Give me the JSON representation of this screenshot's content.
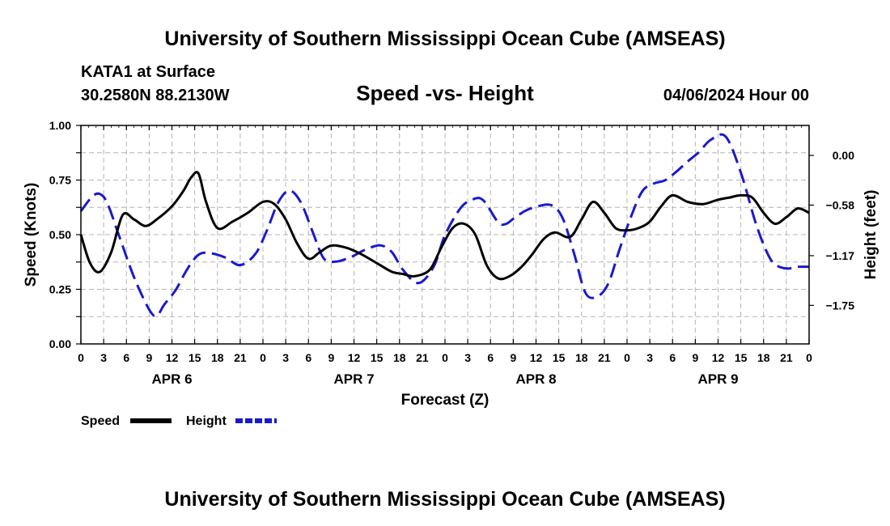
{
  "header": {
    "title_top": "University of Southern Mississippi Ocean Cube (AMSEAS)",
    "station": "KATA1 at Surface",
    "coords": "30.2580N  88.2130W",
    "chart_title": "Speed -vs- Height",
    "date": "04/06/2024 Hour 00",
    "title_bottom": "University of Southern Mississippi Ocean Cube (AMSEAS)"
  },
  "legend": {
    "speed": "Speed",
    "height": "Height"
  },
  "colors": {
    "speed": "#000000",
    "height": "#1a1acc",
    "grid": "#b4b4b4"
  },
  "chart_data": {
    "type": "line",
    "xlabel": "Forecast (Z)",
    "ylabel_left": "Speed (Knots)",
    "ylabel_right": "Height (feet)",
    "x_range_hours": [
      0,
      96
    ],
    "x_tick_labels": [
      "0",
      "3",
      "6",
      "9",
      "12",
      "15",
      "18",
      "21",
      "0",
      "3",
      "6",
      "9",
      "12",
      "15",
      "18",
      "21",
      "0",
      "3",
      "6",
      "9",
      "12",
      "15",
      "18",
      "21",
      "0",
      "3",
      "6",
      "9",
      "12",
      "15",
      "18",
      "21",
      "0"
    ],
    "day_labels": [
      "APR 6",
      "APR 7",
      "APR 8",
      "APR 9"
    ],
    "y_left": {
      "range": [
        0,
        1
      ],
      "ticks": [
        "0.00",
        "0.25",
        "0.50",
        "0.75",
        "1.00"
      ],
      "tick_values": [
        0,
        0.25,
        0.5,
        0.75,
        1.0
      ]
    },
    "y_right": {
      "range": [
        -2.2,
        0.35
      ],
      "ticks": [
        "0.00",
        "−0.58",
        "−1.17",
        "−1.75"
      ],
      "tick_values": [
        0,
        -0.58,
        -1.17,
        -1.75
      ]
    },
    "series": [
      {
        "name": "Speed",
        "axis": "left",
        "style": "solid",
        "x": [
          0,
          1.2,
          2.5,
          4,
          5.5,
          7,
          8.5,
          10,
          12,
          13.5,
          14.5,
          15.5,
          16.5,
          18,
          20,
          22,
          24,
          25.5,
          27,
          28.5,
          30,
          31.5,
          33,
          35,
          37,
          39,
          41,
          42.5,
          44,
          46,
          47.5,
          49,
          50.5,
          52,
          53.5,
          55,
          56.5,
          58,
          59.5,
          61,
          62.5,
          64.5,
          66,
          67.5,
          69,
          70.5,
          72,
          73.5,
          75,
          76.5,
          78,
          80,
          82,
          84,
          85.5,
          87,
          88.5,
          90,
          91.5,
          93,
          94.5,
          96
        ],
        "values": [
          0.5,
          0.37,
          0.33,
          0.42,
          0.59,
          0.57,
          0.54,
          0.57,
          0.63,
          0.7,
          0.76,
          0.78,
          0.65,
          0.53,
          0.56,
          0.6,
          0.65,
          0.64,
          0.57,
          0.46,
          0.39,
          0.42,
          0.45,
          0.44,
          0.41,
          0.37,
          0.33,
          0.32,
          0.31,
          0.34,
          0.44,
          0.53,
          0.55,
          0.5,
          0.36,
          0.3,
          0.31,
          0.35,
          0.41,
          0.48,
          0.51,
          0.49,
          0.57,
          0.65,
          0.6,
          0.53,
          0.52,
          0.53,
          0.56,
          0.63,
          0.68,
          0.65,
          0.64,
          0.66,
          0.67,
          0.68,
          0.67,
          0.6,
          0.55,
          0.58,
          0.62,
          0.6
        ]
      },
      {
        "name": "Height",
        "axis": "right",
        "style": "dashed",
        "x": [
          0,
          1.5,
          2.5,
          3.5,
          5,
          7,
          9,
          10,
          11,
          12.5,
          14,
          15.5,
          17,
          19,
          21,
          23,
          24.5,
          26,
          27.5,
          29,
          30.5,
          32,
          33.5,
          35.5,
          37.5,
          39.5,
          41,
          42.5,
          44.5,
          46.5,
          48,
          50,
          51.5,
          53,
          55,
          56,
          57,
          58.5,
          60,
          62,
          63.5,
          65,
          66.5,
          68,
          69.5,
          71,
          72.5,
          74,
          75.5,
          77,
          78.5,
          80,
          81.5,
          83,
          85,
          87,
          89,
          90.5,
          91.5,
          93,
          94.5,
          96
        ],
        "values": [
          -0.65,
          -0.48,
          -0.45,
          -0.56,
          -0.93,
          -1.42,
          -1.8,
          -1.87,
          -1.74,
          -1.57,
          -1.33,
          -1.16,
          -1.14,
          -1.19,
          -1.28,
          -1.15,
          -0.88,
          -0.55,
          -0.41,
          -0.55,
          -0.88,
          -1.2,
          -1.24,
          -1.19,
          -1.1,
          -1.05,
          -1.13,
          -1.34,
          -1.49,
          -1.3,
          -0.93,
          -0.62,
          -0.52,
          -0.52,
          -0.78,
          -0.8,
          -0.74,
          -0.65,
          -0.6,
          -0.58,
          -0.73,
          -1.14,
          -1.6,
          -1.65,
          -1.5,
          -1.1,
          -0.72,
          -0.42,
          -0.33,
          -0.29,
          -0.19,
          -0.07,
          0.04,
          0.18,
          0.22,
          -0.2,
          -0.8,
          -1.14,
          -1.27,
          -1.32,
          -1.3,
          -1.3
        ]
      }
    ],
    "grid": true,
    "legend_position": "bottom-left"
  }
}
